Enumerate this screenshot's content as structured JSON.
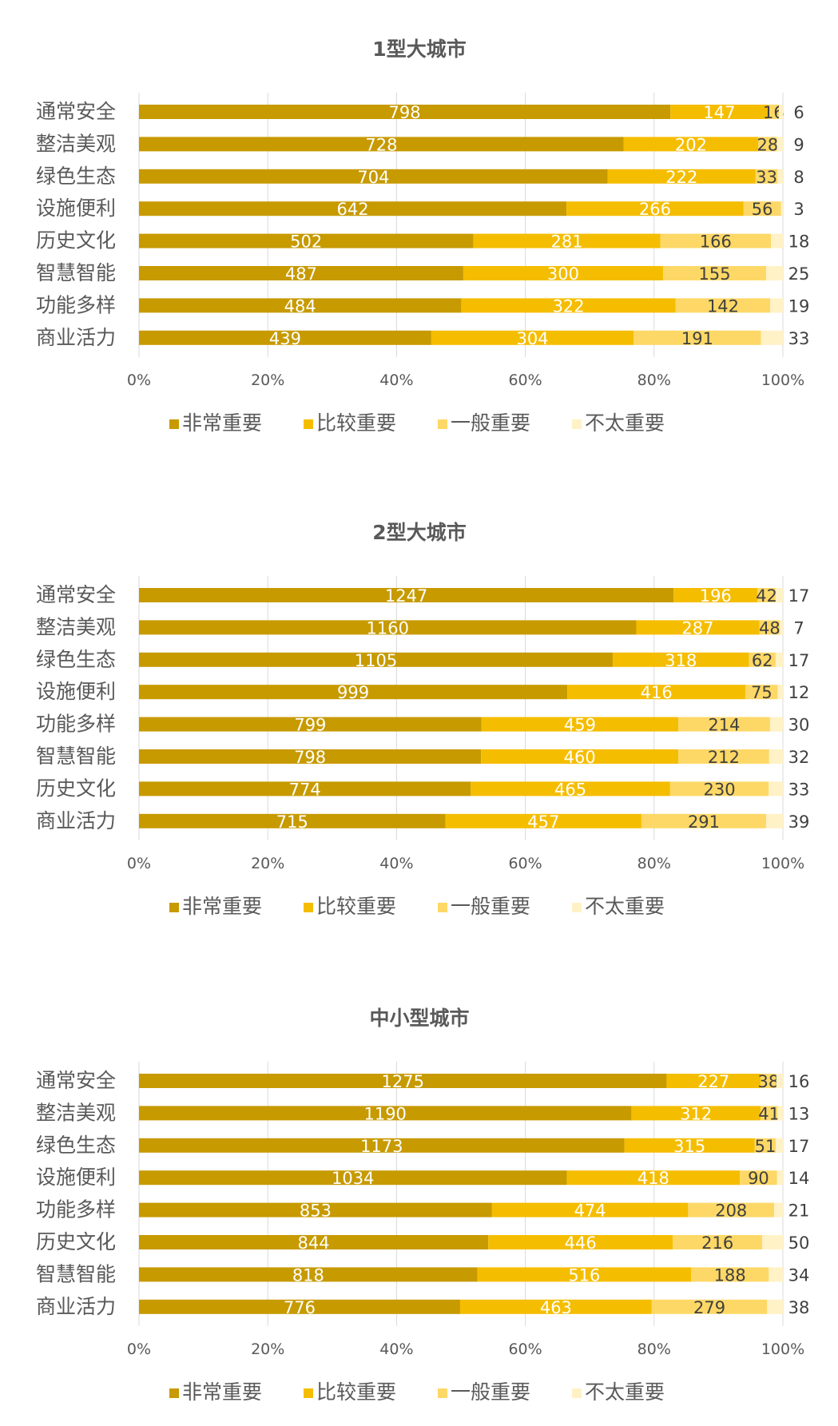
{
  "colors": {
    "非常重要": "#C79A00",
    "比较重要": "#F5BD00",
    "一般重要": "#FDD866",
    "不太重要": "#FFF2C6"
  },
  "chart_data": [
    {
      "type": "bar",
      "orientation": "horizontal",
      "stacked": "percent",
      "title": "1型大城市",
      "categories": [
        "通常安全",
        "整洁美观",
        "绿色生态",
        "设施便利",
        "历史文化",
        "智慧智能",
        "功能多样",
        "商业活力"
      ],
      "series": [
        {
          "name": "非常重要",
          "values": [
            798,
            728,
            704,
            642,
            502,
            487,
            484,
            439
          ]
        },
        {
          "name": "比较重要",
          "values": [
            147,
            202,
            222,
            266,
            281,
            300,
            322,
            304
          ]
        },
        {
          "name": "一般重要",
          "values": [
            16,
            28,
            33,
            56,
            166,
            155,
            142,
            191
          ]
        },
        {
          "name": "不太重要",
          "values": [
            6,
            9,
            8,
            3,
            18,
            25,
            19,
            33
          ]
        }
      ],
      "x_ticks": [
        "0%",
        "20%",
        "40%",
        "60%",
        "80%",
        "100%"
      ],
      "legend": "bottom"
    },
    {
      "type": "bar",
      "orientation": "horizontal",
      "stacked": "percent",
      "title": "2型大城市",
      "categories": [
        "通常安全",
        "整洁美观",
        "绿色生态",
        "设施便利",
        "功能多样",
        "智慧智能",
        "历史文化",
        "商业活力"
      ],
      "series": [
        {
          "name": "非常重要",
          "values": [
            1247,
            1160,
            1105,
            999,
            799,
            798,
            774,
            715
          ]
        },
        {
          "name": "比较重要",
          "values": [
            196,
            287,
            318,
            416,
            459,
            460,
            465,
            457
          ]
        },
        {
          "name": "一般重要",
          "values": [
            42,
            48,
            62,
            75,
            214,
            212,
            230,
            291
          ]
        },
        {
          "name": "不太重要",
          "values": [
            17,
            7,
            17,
            12,
            30,
            32,
            33,
            39
          ]
        }
      ],
      "x_ticks": [
        "0%",
        "20%",
        "40%",
        "60%",
        "80%",
        "100%"
      ],
      "legend": "bottom"
    },
    {
      "type": "bar",
      "orientation": "horizontal",
      "stacked": "percent",
      "title": "中小型城市",
      "categories": [
        "通常安全",
        "整洁美观",
        "绿色生态",
        "设施便利",
        "功能多样",
        "历史文化",
        "智慧智能",
        "商业活力"
      ],
      "series": [
        {
          "name": "非常重要",
          "values": [
            1275,
            1190,
            1173,
            1034,
            853,
            844,
            818,
            776
          ]
        },
        {
          "name": "比较重要",
          "values": [
            227,
            312,
            315,
            418,
            474,
            446,
            516,
            463
          ]
        },
        {
          "name": "一般重要",
          "values": [
            38,
            41,
            51,
            90,
            208,
            216,
            188,
            279
          ]
        },
        {
          "name": "不太重要",
          "values": [
            16,
            13,
            17,
            14,
            21,
            50,
            34,
            38
          ]
        }
      ],
      "x_ticks": [
        "0%",
        "20%",
        "40%",
        "60%",
        "80%",
        "100%"
      ],
      "legend": "bottom"
    }
  ]
}
